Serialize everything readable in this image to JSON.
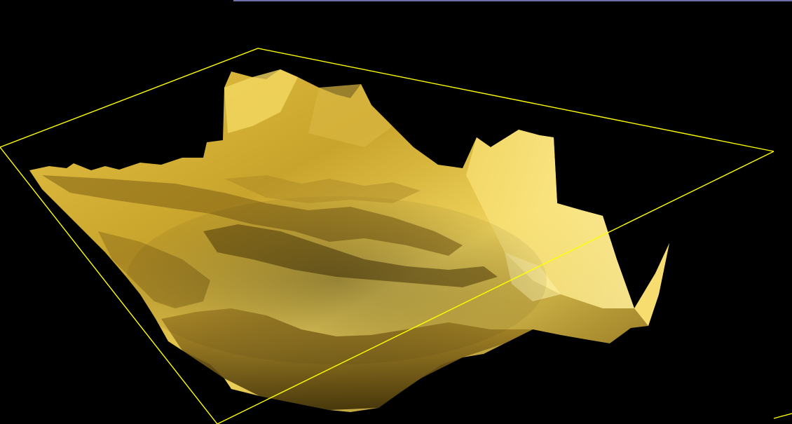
{
  "scene": {
    "background_color": "#000000",
    "bounding_box_color": "#ffff00",
    "surface_color": "#f2d35a",
    "surface_shadow_color": "#3a2b05",
    "surface_highlight_color": "#ffef9a",
    "top_edge_color": "#6b6fb0"
  }
}
